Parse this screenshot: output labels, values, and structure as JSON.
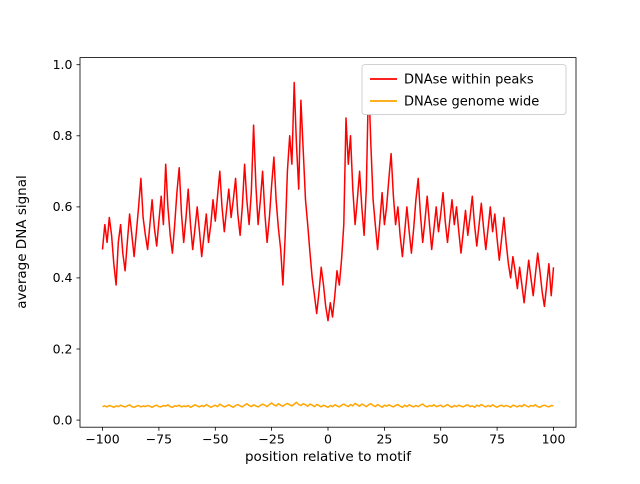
{
  "figure": {
    "background": "#ffffff",
    "frame_color": "#000000"
  },
  "chart_data": {
    "type": "line",
    "title": "",
    "xlabel": "position relative to motif",
    "ylabel": "average DNA signal",
    "xlim": [
      -110,
      110
    ],
    "ylim": [
      -0.02,
      1.02
    ],
    "grid": false,
    "legend_position": "upper right",
    "x_ticks": [
      -100,
      -75,
      -50,
      -25,
      0,
      25,
      50,
      75,
      100
    ],
    "x_tick_labels": [
      "−100",
      "−75",
      "−50",
      "−25",
      "0",
      "25",
      "50",
      "75",
      "100"
    ],
    "y_ticks": [
      0.0,
      0.2,
      0.4,
      0.6,
      0.8,
      1.0
    ],
    "y_tick_labels": [
      "0.0",
      "0.2",
      "0.4",
      "0.6",
      "0.8",
      "1.0"
    ],
    "x": [
      -100,
      -99,
      -98,
      -97,
      -96,
      -95,
      -94,
      -93,
      -92,
      -91,
      -90,
      -89,
      -88,
      -87,
      -86,
      -85,
      -84,
      -83,
      -82,
      -81,
      -80,
      -79,
      -78,
      -77,
      -76,
      -75,
      -74,
      -73,
      -72,
      -71,
      -70,
      -69,
      -68,
      -67,
      -66,
      -65,
      -64,
      -63,
      -62,
      -61,
      -60,
      -59,
      -58,
      -57,
      -56,
      -55,
      -54,
      -53,
      -52,
      -51,
      -50,
      -49,
      -48,
      -47,
      -46,
      -45,
      -44,
      -43,
      -42,
      -41,
      -40,
      -39,
      -38,
      -37,
      -36,
      -35,
      -34,
      -33,
      -32,
      -31,
      -30,
      -29,
      -28,
      -27,
      -26,
      -25,
      -24,
      -23,
      -22,
      -21,
      -20,
      -19,
      -18,
      -17,
      -16,
      -15,
      -14,
      -13,
      -12,
      -11,
      -10,
      -9,
      -8,
      -7,
      -6,
      -5,
      -4,
      -3,
      -2,
      -1,
      0,
      1,
      2,
      3,
      4,
      5,
      6,
      7,
      8,
      9,
      10,
      11,
      12,
      13,
      14,
      15,
      16,
      17,
      18,
      19,
      20,
      21,
      22,
      23,
      24,
      25,
      26,
      27,
      28,
      29,
      30,
      31,
      32,
      33,
      34,
      35,
      36,
      37,
      38,
      39,
      40,
      41,
      42,
      43,
      44,
      45,
      46,
      47,
      48,
      49,
      50,
      51,
      52,
      53,
      54,
      55,
      56,
      57,
      58,
      59,
      60,
      61,
      62,
      63,
      64,
      65,
      66,
      67,
      68,
      69,
      70,
      71,
      72,
      73,
      74,
      75,
      76,
      77,
      78,
      79,
      80,
      81,
      82,
      83,
      84,
      85,
      86,
      87,
      88,
      89,
      90,
      91,
      92,
      93,
      94,
      95,
      96,
      97,
      98,
      99,
      100
    ],
    "series": [
      {
        "name": "DNAse within peaks",
        "color": "#ff0000",
        "values": [
          0.48,
          0.55,
          0.5,
          0.57,
          0.52,
          0.44,
          0.38,
          0.5,
          0.55,
          0.47,
          0.42,
          0.5,
          0.58,
          0.52,
          0.46,
          0.53,
          0.6,
          0.68,
          0.57,
          0.52,
          0.48,
          0.55,
          0.62,
          0.54,
          0.49,
          0.56,
          0.63,
          0.55,
          0.72,
          0.6,
          0.52,
          0.47,
          0.55,
          0.64,
          0.71,
          0.58,
          0.5,
          0.57,
          0.65,
          0.55,
          0.48,
          0.54,
          0.6,
          0.53,
          0.46,
          0.52,
          0.58,
          0.5,
          0.55,
          0.62,
          0.56,
          0.63,
          0.7,
          0.6,
          0.53,
          0.59,
          0.65,
          0.57,
          0.62,
          0.68,
          0.58,
          0.52,
          0.6,
          0.72,
          0.62,
          0.55,
          0.64,
          0.83,
          0.66,
          0.55,
          0.62,
          0.7,
          0.58,
          0.5,
          0.57,
          0.66,
          0.74,
          0.62,
          0.54,
          0.48,
          0.38,
          0.52,
          0.7,
          0.8,
          0.72,
          0.95,
          0.78,
          0.65,
          0.9,
          0.76,
          0.62,
          0.55,
          0.47,
          0.4,
          0.35,
          0.3,
          0.36,
          0.43,
          0.38,
          0.32,
          0.28,
          0.33,
          0.29,
          0.35,
          0.42,
          0.38,
          0.45,
          0.55,
          0.85,
          0.72,
          0.8,
          0.65,
          0.55,
          0.62,
          0.7,
          0.6,
          0.52,
          0.65,
          0.96,
          0.78,
          0.62,
          0.55,
          0.48,
          0.56,
          0.64,
          0.55,
          0.6,
          0.68,
          0.75,
          0.63,
          0.55,
          0.6,
          0.52,
          0.46,
          0.53,
          0.6,
          0.53,
          0.47,
          0.54,
          0.62,
          0.68,
          0.58,
          0.5,
          0.56,
          0.63,
          0.55,
          0.48,
          0.54,
          0.6,
          0.53,
          0.58,
          0.64,
          0.56,
          0.5,
          0.56,
          0.62,
          0.55,
          0.6,
          0.53,
          0.47,
          0.53,
          0.59,
          0.52,
          0.57,
          0.63,
          0.55,
          0.49,
          0.55,
          0.61,
          0.54,
          0.48,
          0.54,
          0.6,
          0.53,
          0.58,
          0.51,
          0.45,
          0.51,
          0.57,
          0.5,
          0.44,
          0.4,
          0.46,
          0.42,
          0.37,
          0.43,
          0.38,
          0.33,
          0.39,
          0.45,
          0.4,
          0.35,
          0.41,
          0.47,
          0.42,
          0.36,
          0.32,
          0.38,
          0.44,
          0.35,
          0.43
        ]
      },
      {
        "name": "DNAse genome wide",
        "color": "#ffa500",
        "values": [
          0.038,
          0.04,
          0.037,
          0.041,
          0.039,
          0.036,
          0.04,
          0.038,
          0.042,
          0.039,
          0.037,
          0.04,
          0.043,
          0.038,
          0.036,
          0.039,
          0.041,
          0.037,
          0.04,
          0.038,
          0.041,
          0.039,
          0.036,
          0.04,
          0.042,
          0.038,
          0.037,
          0.041,
          0.039,
          0.043,
          0.038,
          0.036,
          0.04,
          0.039,
          0.042,
          0.037,
          0.04,
          0.038,
          0.041,
          0.036,
          0.039,
          0.043,
          0.04,
          0.037,
          0.041,
          0.038,
          0.044,
          0.04,
          0.036,
          0.039,
          0.042,
          0.038,
          0.045,
          0.041,
          0.037,
          0.04,
          0.043,
          0.039,
          0.036,
          0.041,
          0.044,
          0.04,
          0.037,
          0.042,
          0.046,
          0.041,
          0.038,
          0.043,
          0.04,
          0.037,
          0.041,
          0.045,
          0.042,
          0.038,
          0.044,
          0.048,
          0.043,
          0.04,
          0.046,
          0.042,
          0.039,
          0.044,
          0.047,
          0.043,
          0.04,
          0.045,
          0.05,
          0.044,
          0.041,
          0.046,
          0.043,
          0.039,
          0.045,
          0.042,
          0.038,
          0.044,
          0.041,
          0.037,
          0.042,
          0.039,
          0.036,
          0.041,
          0.038,
          0.043,
          0.04,
          0.037,
          0.042,
          0.045,
          0.041,
          0.038,
          0.044,
          0.04,
          0.047,
          0.043,
          0.039,
          0.045,
          0.042,
          0.038,
          0.043,
          0.046,
          0.041,
          0.038,
          0.044,
          0.04,
          0.036,
          0.042,
          0.039,
          0.043,
          0.04,
          0.037,
          0.041,
          0.044,
          0.039,
          0.036,
          0.042,
          0.038,
          0.043,
          0.04,
          0.037,
          0.041,
          0.038,
          0.042,
          0.045,
          0.04,
          0.037,
          0.041,
          0.039,
          0.043,
          0.038,
          0.04,
          0.042,
          0.037,
          0.04,
          0.044,
          0.039,
          0.036,
          0.041,
          0.038,
          0.042,
          0.039,
          0.037,
          0.041,
          0.043,
          0.038,
          0.04,
          0.036,
          0.042,
          0.039,
          0.044,
          0.04,
          0.037,
          0.041,
          0.038,
          0.043,
          0.039,
          0.036,
          0.04,
          0.042,
          0.038,
          0.041,
          0.039,
          0.036,
          0.042,
          0.04,
          0.037,
          0.041,
          0.038,
          0.044,
          0.04,
          0.037,
          0.041,
          0.039,
          0.043,
          0.038,
          0.036,
          0.04,
          0.042,
          0.039,
          0.037,
          0.041,
          0.04
        ]
      }
    ]
  }
}
